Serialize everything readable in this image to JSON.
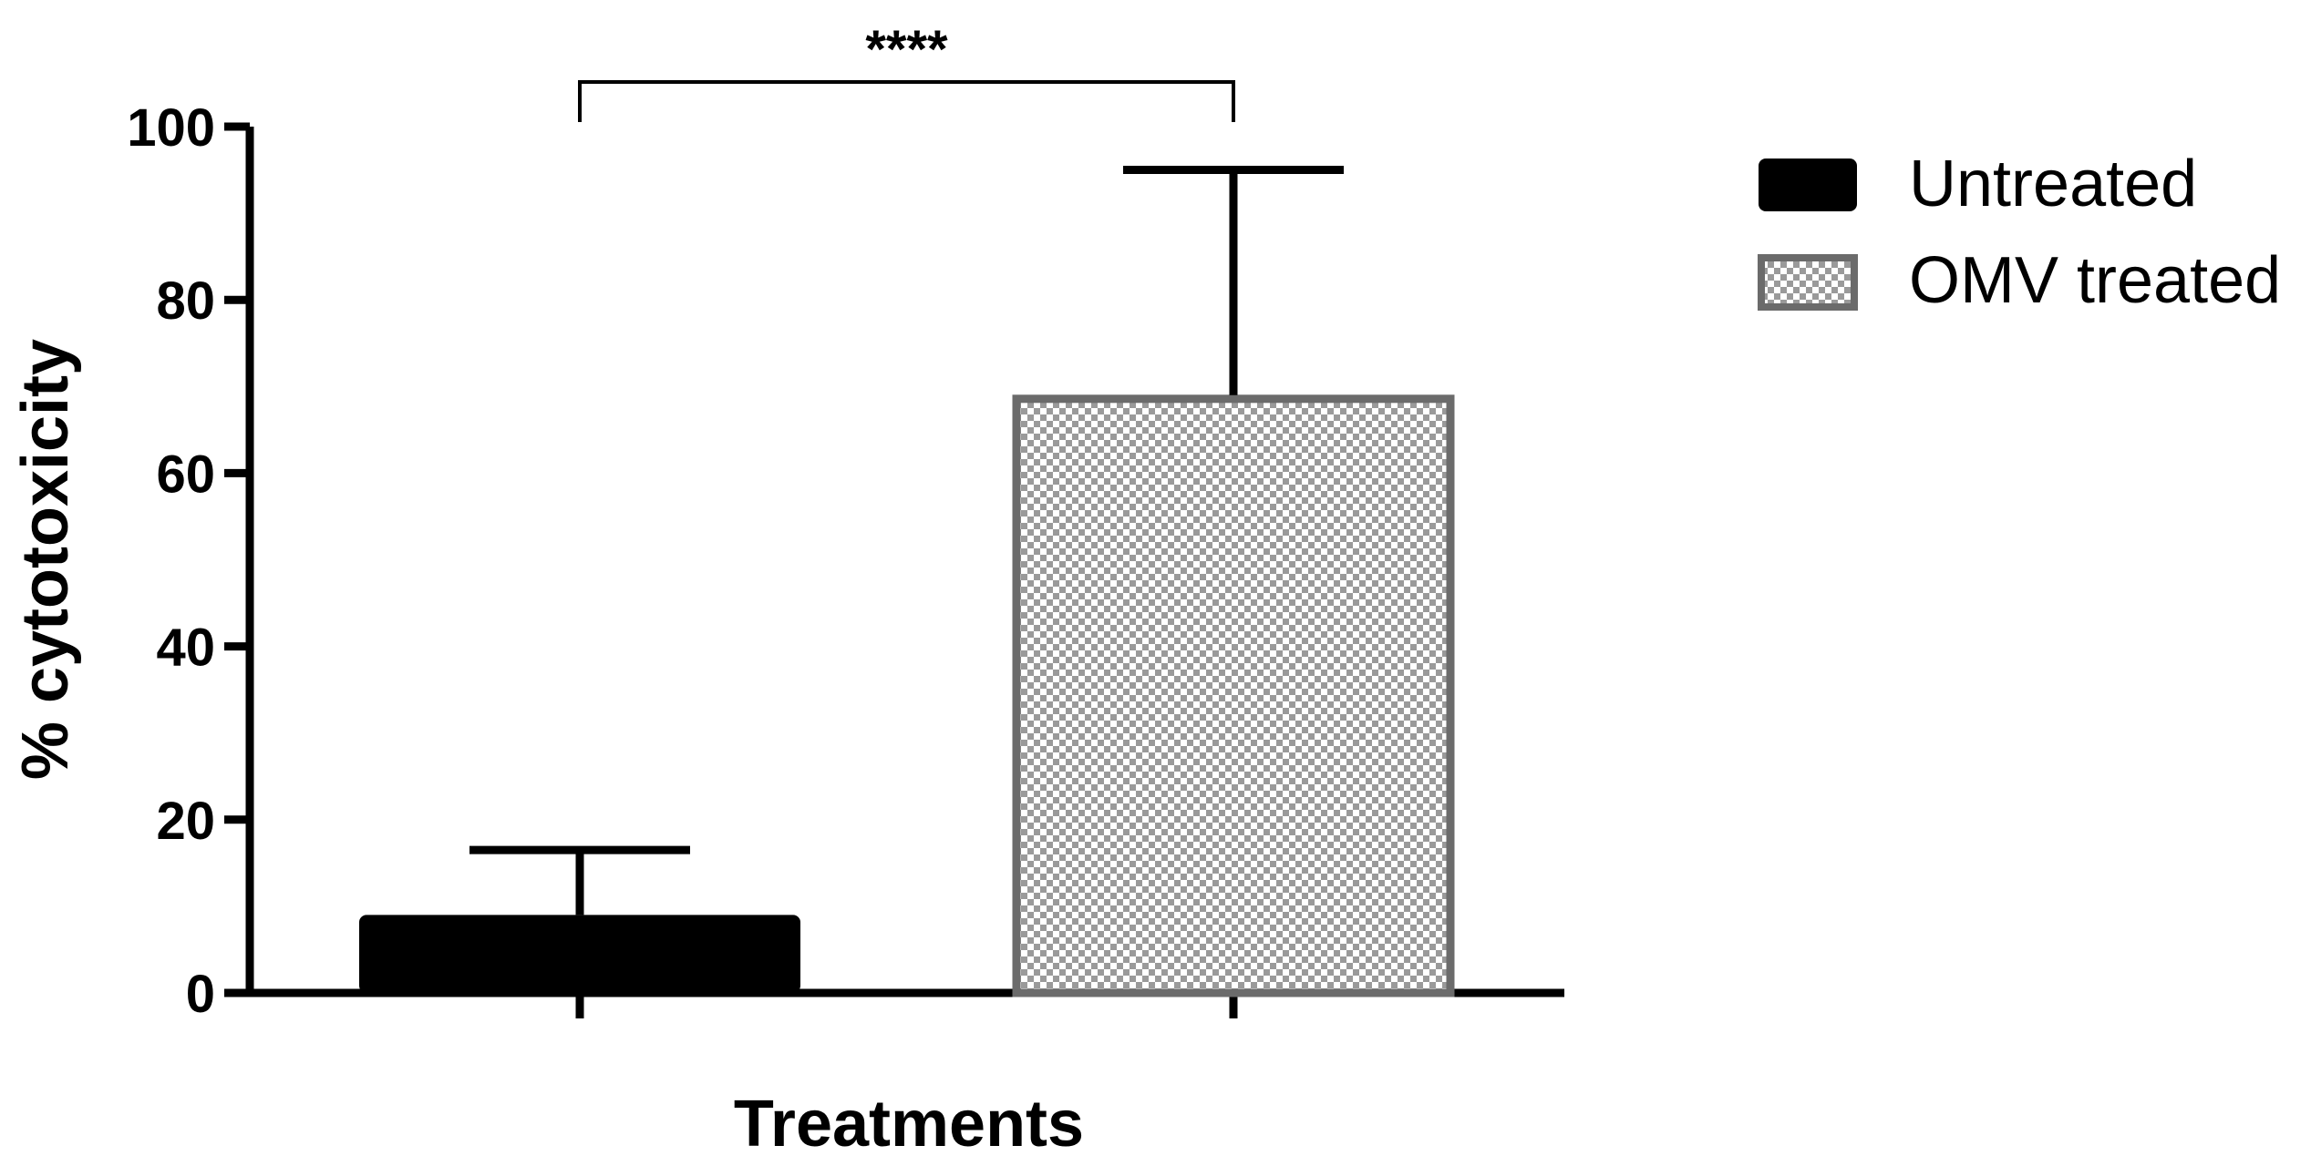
{
  "chart_data": {
    "type": "bar",
    "categories": [
      "Untreated",
      "OMV treated"
    ],
    "values": [
      9,
      69
    ],
    "error_bars": [
      7.5,
      26
    ],
    "xlabel": "Treatments",
    "ylabel": "% cytotoxicity",
    "ylim": [
      0,
      100
    ],
    "yticks": [
      "0",
      "20",
      "40",
      "60",
      "80",
      "100"
    ],
    "grid": false,
    "legend": {
      "position": "top-right",
      "entries": [
        {
          "label": "Untreated",
          "fill": "solid",
          "color": "#000000"
        },
        {
          "label": "OMV treated",
          "fill": "checkered",
          "color": "#6b6b6b"
        }
      ]
    },
    "annotation": {
      "text": "****",
      "between": [
        "Untreated",
        "OMV treated"
      ]
    }
  }
}
